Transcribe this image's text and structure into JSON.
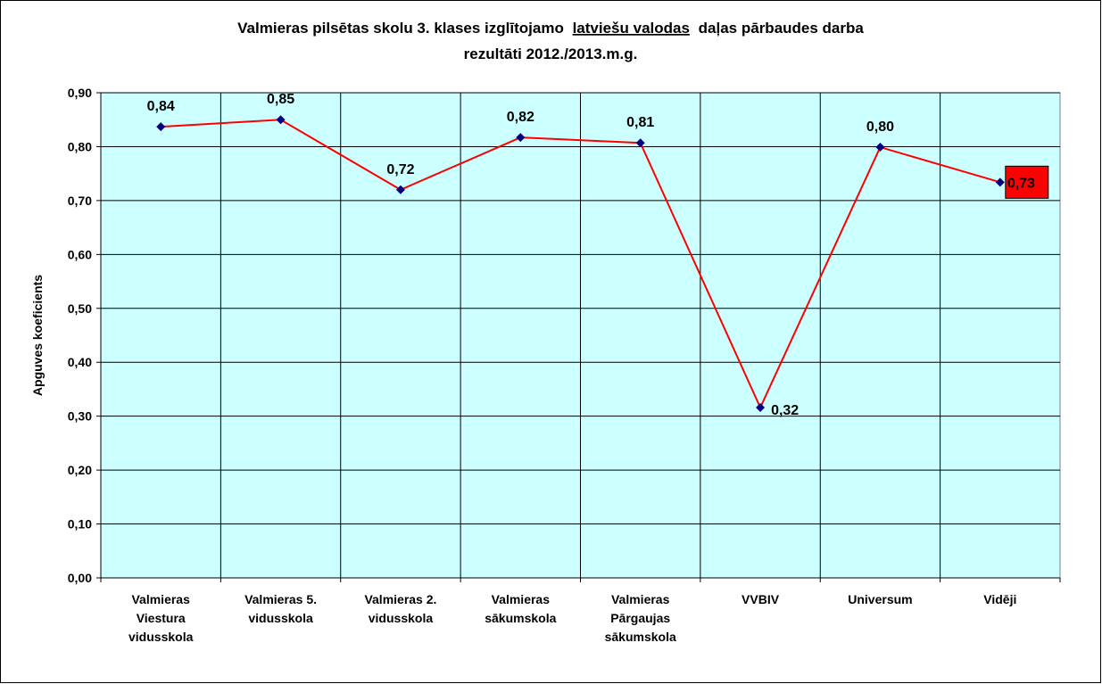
{
  "chart_data": {
    "type": "line",
    "title": [
      "Valmieras pilsētas skolu 3. klases izglītojamo",
      "latviešu valodas",
      "daļas pārbaudes darba",
      "rezultāti 2012./2013.m.g."
    ],
    "y_label": "Apguves koeficients",
    "categories": [
      "Valmieras Viestura vidusskola",
      "Valmieras 5. vidusskola",
      "Valmieras 2. vidusskola",
      "Valmieras sākumskola",
      "Valmieras Pārgaujas sākumskola",
      "VVBIV",
      "Universum",
      "Vidēji"
    ],
    "series": [
      {
        "name": "Apguves koeficients",
        "color": "#ff0000",
        "marker_color": "#000080",
        "values": [
          0.837,
          0.85,
          0.72,
          0.817,
          0.807,
          0.316,
          0.799,
          0.734
        ],
        "value_labels": [
          "0,84",
          "0,85",
          "0,72",
          "0,82",
          "0,81",
          "0,32",
          "0,80",
          "0,73"
        ]
      }
    ],
    "ylim": [
      0,
      0.9
    ],
    "yticks": [
      {
        "value": 0,
        "label": "0,00"
      },
      {
        "value": 0.1,
        "label": "0,10"
      },
      {
        "value": 0.2,
        "label": "0,20"
      },
      {
        "value": 0.3,
        "label": "0,30"
      },
      {
        "value": 0.4,
        "label": "0,40"
      },
      {
        "value": 0.5,
        "label": "0,50"
      },
      {
        "value": 0.6,
        "label": "0,60"
      },
      {
        "value": 0.7,
        "label": "0,70"
      },
      {
        "value": 0.8,
        "label": "0,80"
      },
      {
        "value": 0.9,
        "label": "0,90"
      }
    ],
    "grid": true,
    "plot_background": "#ccffff"
  }
}
